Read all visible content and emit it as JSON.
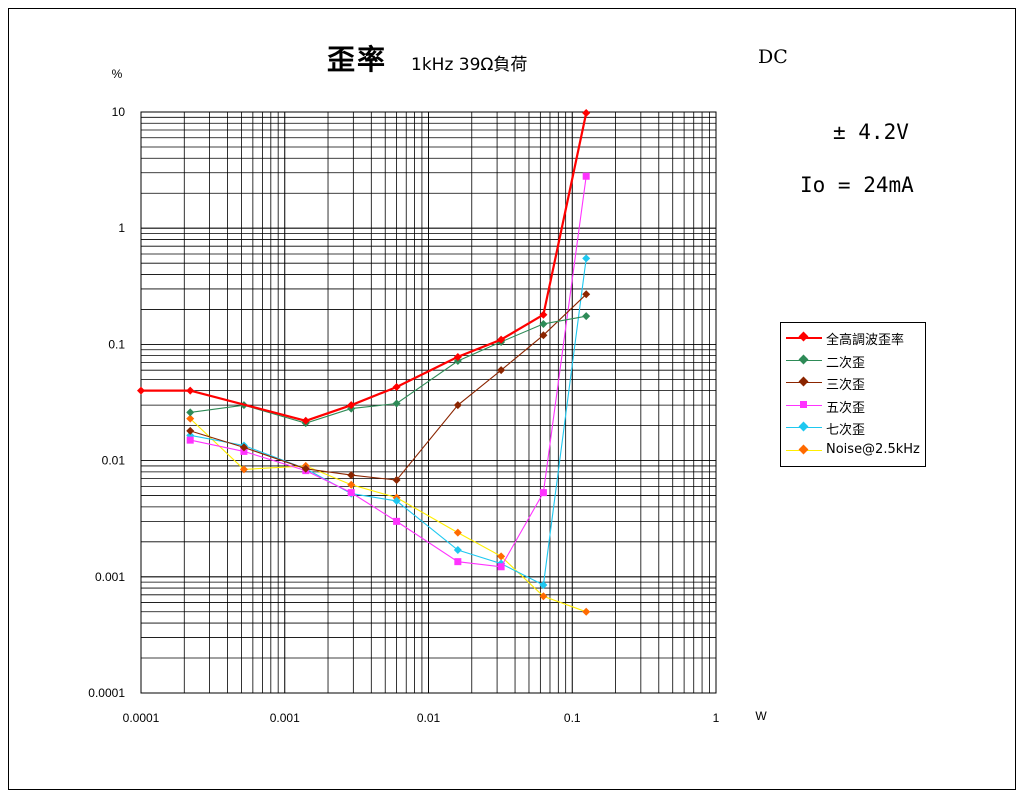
{
  "title": "歪率",
  "subtitle": "1kHz 39Ω負荷",
  "dc_label": "DC",
  "voltage_label": "± 4.2V",
  "current_label": "Io = 24mA",
  "colors": {
    "thd": "#ff0000",
    "h2": "#2e8b57",
    "h3": "#8b2500",
    "h5": "#ff33ff",
    "h7": "#1ec8f0",
    "noise": "#ffee00",
    "noise_marker": "#ff6a00"
  },
  "chart_data": {
    "type": "line",
    "xscale": "log",
    "yscale": "log",
    "xlim": [
      0.0001,
      1
    ],
    "ylim": [
      0.0001,
      10
    ],
    "xlabel": "W",
    "ylabel": "%",
    "grid": true,
    "legend_position": "right",
    "x_ticks": [
      "0.0001",
      "0.001",
      "0.01",
      "0.1",
      "1"
    ],
    "y_ticks": [
      "0.0001",
      "0.001",
      "0.01",
      "0.1",
      "1",
      "10"
    ],
    "series": [
      {
        "name": "全高調波歪率",
        "key": "thd",
        "marker": "diamond",
        "x": [
          0.0001,
          0.00022,
          0.0014,
          0.0029,
          0.006,
          0.016,
          0.032,
          0.063,
          0.125
        ],
        "values": [
          0.04,
          0.04,
          0.022,
          0.03,
          0.043,
          0.078,
          0.11,
          0.18,
          9.8
        ]
      },
      {
        "name": "二次歪",
        "key": "h2",
        "marker": "diamond",
        "x": [
          0.00022,
          0.00052,
          0.0014,
          0.0029,
          0.006,
          0.016,
          0.032,
          0.063,
          0.125
        ],
        "values": [
          0.026,
          0.03,
          0.021,
          0.028,
          0.031,
          0.072,
          0.105,
          0.15,
          0.175
        ]
      },
      {
        "name": "三次歪",
        "key": "h3",
        "marker": "diamond",
        "x": [
          0.00022,
          0.00052,
          0.0014,
          0.0029,
          0.006,
          0.016,
          0.032,
          0.063,
          0.125
        ],
        "values": [
          0.018,
          0.013,
          0.0085,
          0.0075,
          0.0068,
          0.03,
          0.06,
          0.12,
          0.27
        ]
      },
      {
        "name": "五次歪",
        "key": "h5",
        "marker": "square",
        "x": [
          0.00022,
          0.00052,
          0.0014,
          0.0029,
          0.006,
          0.016,
          0.032,
          0.063,
          0.125
        ],
        "values": [
          0.015,
          0.012,
          0.0082,
          0.0053,
          0.003,
          0.00135,
          0.00122,
          0.0053,
          2.8
        ]
      },
      {
        "name": "七次歪",
        "key": "h7",
        "marker": "diamond",
        "x": [
          0.00022,
          0.00052,
          0.0014,
          0.0029,
          0.006,
          0.016,
          0.032,
          0.063,
          0.125
        ],
        "values": [
          0.0165,
          0.0135,
          0.0085,
          0.0052,
          0.0045,
          0.0017,
          0.0013,
          0.00085,
          0.55
        ]
      },
      {
        "name": "Noise@2.5kHz",
        "key": "noise",
        "marker": "diamond",
        "x": [
          0.00022,
          0.00052,
          0.0014,
          0.0029,
          0.006,
          0.016,
          0.032,
          0.063,
          0.125
        ],
        "values": [
          0.023,
          0.0084,
          0.009,
          0.0062,
          0.0048,
          0.0024,
          0.0015,
          0.00068,
          0.0005
        ]
      }
    ]
  }
}
